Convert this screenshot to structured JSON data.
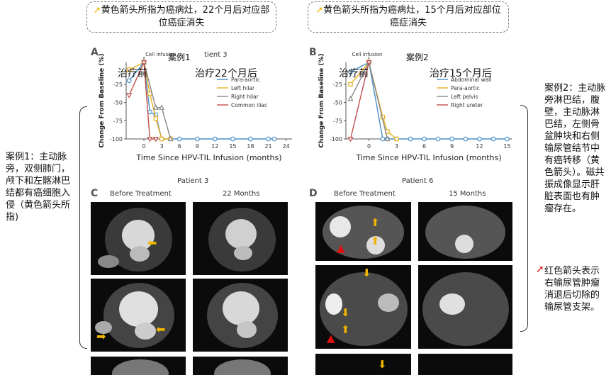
{
  "callouts": {
    "left": "黄色箭头所指为癌病灶，22个月后对应部位癌症消失",
    "right": "黄色箭头所指为癌病灶，15个月后对应部位癌症消失"
  },
  "case_labels": {
    "a": "案例1",
    "b": "案例2"
  },
  "chart_titles": {
    "a": "tient 3",
    "b": ""
  },
  "phase_labels": {
    "a_before": "治疗前",
    "a_after": "治疗22个月后",
    "b_before": "治疗前",
    "b_after": "治疗15个月后"
  },
  "side_notes": {
    "left": "案例1：主动脉旁，双侧肺门，颅下和左髂淋巴结都有癌细胞入侵（黄色箭头所指)",
    "right_top": "案例2：主动脉旁淋巴结，腹壁，主动脉淋巴结，左侧骨盆肿块和右侧输尿管结节中有癌转移（黄色箭头）。磁共振成像显示肝脏表面也有肿瘤存在。",
    "right_bottom": "红色箭头表示右输尿管肿瘤消退后切除的输尿管支架。"
  },
  "panels": {
    "A": "A",
    "B": "B",
    "C": "C",
    "D": "D",
    "patient3": "Patient 3",
    "patient6": "Patient 6",
    "before": "Before Treatment",
    "after_c": "22 Months",
    "after_d": "15 Months"
  },
  "chart_data": [
    {
      "type": "line",
      "annotation": "Cell infusion",
      "xlabel": "Time Since HPV-TIL Infusion (months)",
      "ylabel": "Change From Baseline (%)",
      "xticks": [
        0,
        3,
        6,
        9,
        12,
        15,
        18,
        21,
        24
      ],
      "yticks": [
        -100,
        -75,
        -50,
        -25
      ],
      "xlim": [
        -3,
        25
      ],
      "ylim": [
        -100,
        5
      ],
      "series": [
        {
          "name": "Para-aortic",
          "color": "#4a90c8",
          "marker": "o",
          "x": [
            -2.5,
            0,
            1,
            2,
            3,
            4.5,
            6,
            9,
            12,
            15,
            18,
            21,
            22
          ],
          "y": [
            -20,
            5,
            -63,
            -67,
            -100,
            -100,
            -100,
            -100,
            -100,
            -100,
            -100,
            -100,
            -100
          ]
        },
        {
          "name": "Left hilar",
          "color": "#e8b020",
          "marker": "s",
          "x": [
            -2.5,
            0,
            1,
            2,
            3,
            4.5
          ],
          "y": [
            -5,
            5,
            -38,
            -72,
            -100,
            -100
          ]
        },
        {
          "name": "Right hilar",
          "color": "#888888",
          "marker": "^",
          "x": [
            0,
            2,
            3,
            4.5
          ],
          "y": [
            5,
            -57,
            -57,
            -100
          ]
        },
        {
          "name": "Common iliac",
          "color": "#c0504d",
          "marker": "v",
          "x": [
            -2.5,
            0,
            1,
            2
          ],
          "y": [
            -40,
            5,
            -100,
            -100
          ]
        }
      ]
    },
    {
      "type": "line",
      "annotation": "Cell infusion",
      "xlabel": "Time Since HPV-TIL Infusion (months)",
      "ylabel": "Change From Baseline (%)",
      "xticks": [
        0,
        3,
        6,
        9,
        12,
        15
      ],
      "yticks": [
        -100,
        -75,
        -50,
        -25
      ],
      "xlim": [
        -2.5,
        15.5
      ],
      "ylim": [
        -100,
        5
      ],
      "series": [
        {
          "name": "Abdominal wall",
          "color": "#4a90c8",
          "marker": "o",
          "x": [
            -2,
            0,
            1.5,
            2,
            3,
            4.5,
            6,
            7.5,
            9,
            10.5,
            12,
            13.5,
            15
          ],
          "y": [
            -8,
            5,
            -100,
            -100,
            -100,
            -100,
            -100,
            -100,
            -100,
            -100,
            -100,
            -100,
            -100
          ]
        },
        {
          "name": "Para-aortic",
          "color": "#e8b020",
          "marker": "s",
          "x": [
            -2,
            0,
            1.5,
            2,
            3
          ],
          "y": [
            -25,
            5,
            -70,
            -90,
            -100
          ]
        },
        {
          "name": "Left pelvis",
          "color": "#888888",
          "marker": "^",
          "x": [
            -2,
            0,
            2
          ],
          "y": [
            -45,
            5,
            -100
          ]
        },
        {
          "name": "Right ureter",
          "color": "#c0504d",
          "marker": "v",
          "x": [
            -2,
            0
          ],
          "y": [
            -100,
            5
          ]
        }
      ]
    }
  ]
}
